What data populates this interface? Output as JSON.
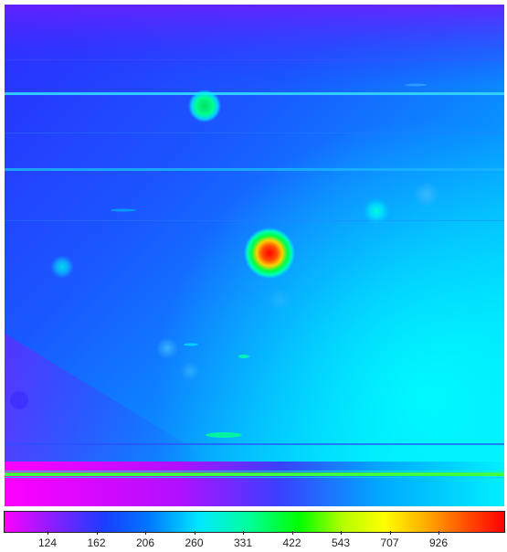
{
  "chart_data": {
    "type": "heatmap",
    "title": "",
    "xlabel": "",
    "ylabel": "",
    "colorbar": {
      "tick_labels": [
        "124",
        "162",
        "206",
        "260",
        "331",
        "422",
        "543",
        "707",
        "926"
      ],
      "colors": [
        "#ff00ff",
        "#7a22ff",
        "#1a3dff",
        "#0078ff",
        "#00e8ff",
        "#00ff9a",
        "#00ff00",
        "#b8ff00",
        "#ffff00",
        "#ffb000",
        "#ff4800",
        "#ff0000"
      ]
    },
    "features": {
      "hot_spot_peak_value": 926,
      "green_spot_value": 331,
      "faint_spot_value": 260
    }
  }
}
